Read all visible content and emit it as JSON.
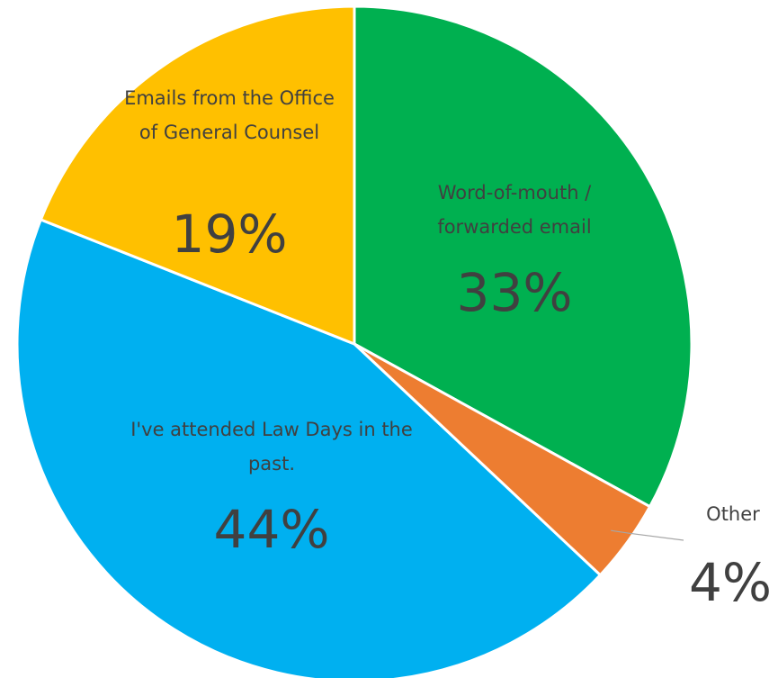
{
  "chart_data": {
    "type": "pie",
    "categories": [
      "Word-of-mouth / forwarded email",
      "Other",
      "I've attended Law Days in the past.",
      "Emails from the Office of General Counsel"
    ],
    "values": [
      33,
      4,
      44,
      19
    ],
    "value_labels": [
      "33%",
      "4%",
      "44%",
      "19%"
    ],
    "colors": [
      "#00b050",
      "#ed7d31",
      "#00b0f0",
      "#ffc000"
    ]
  }
}
